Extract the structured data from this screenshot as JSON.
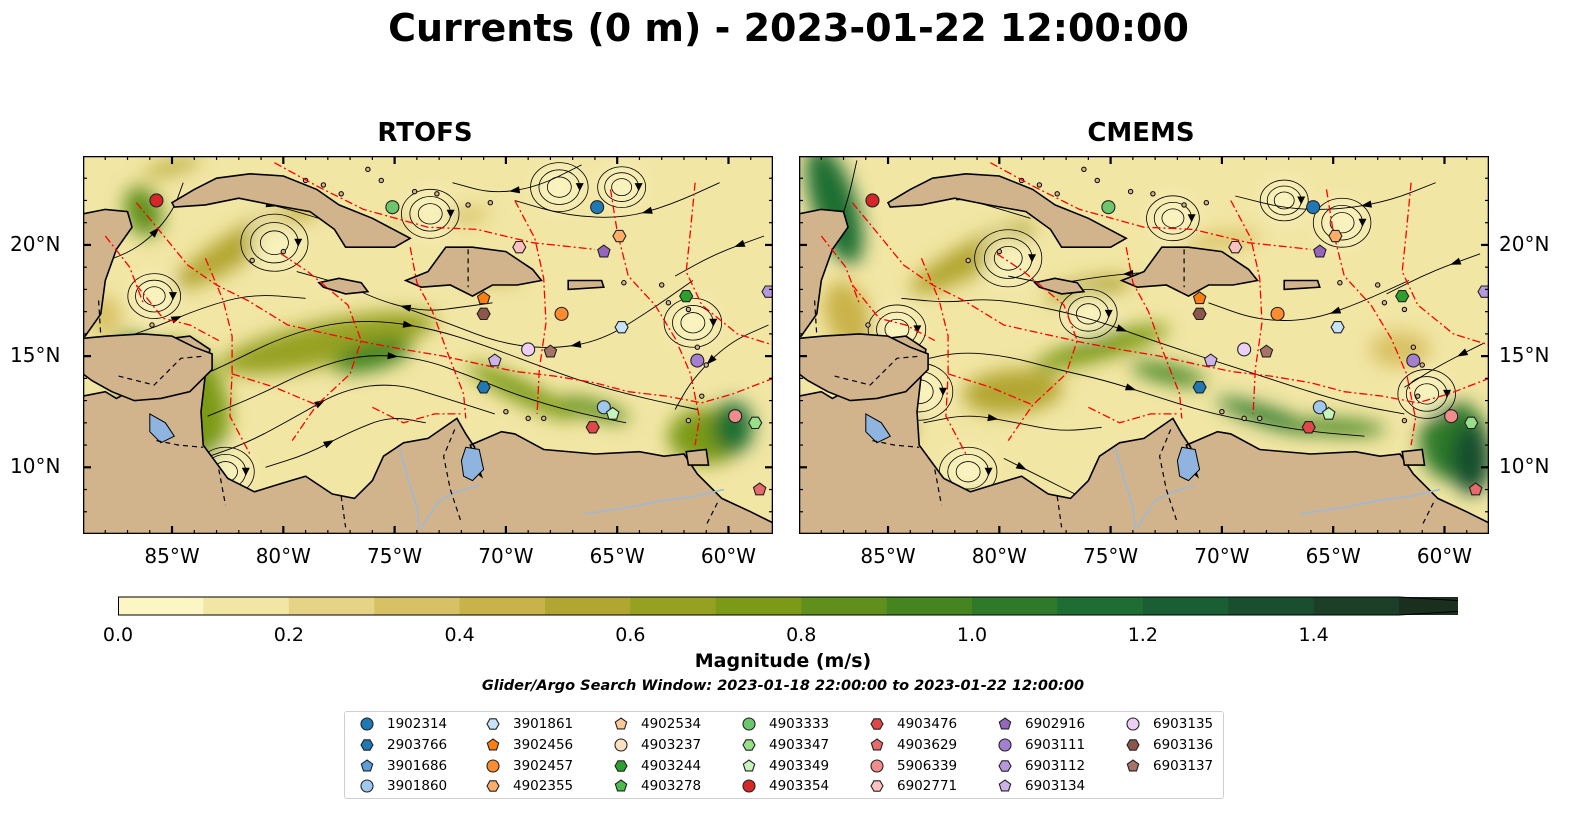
{
  "title": "Currents (0 m) - 2023-01-22 12:00:00",
  "panels": [
    {
      "title": "RTOFS"
    },
    {
      "title": "CMEMS"
    }
  ],
  "map_extent": {
    "lon": [
      -89,
      -58
    ],
    "lat": [
      7,
      24
    ]
  },
  "axes": {
    "x_ticks": [
      "85°W",
      "80°W",
      "75°W",
      "70°W",
      "65°W",
      "60°W"
    ],
    "x_tick_lons": [
      -85,
      -80,
      -75,
      -70,
      -65,
      -60
    ],
    "y_ticks": [
      "20°N",
      "15°N",
      "10°N"
    ],
    "y_tick_lats": [
      20,
      15,
      10
    ]
  },
  "colorbar": {
    "label": "Magnitude (m/s)",
    "ticks": [
      "0.0",
      "0.2",
      "0.4",
      "0.6",
      "0.8",
      "1.0",
      "1.2",
      "1.4"
    ],
    "range": [
      0,
      1.5
    ],
    "extend": "max",
    "colors": [
      "#fbf6c4",
      "#f2e6a5",
      "#e6d386",
      "#d8c165",
      "#c9b24a",
      "#b2a632",
      "#96a121",
      "#7c9a18",
      "#60901b",
      "#458520",
      "#2f7a2a",
      "#1e6e33",
      "#195f33",
      "#194f2e",
      "#1b3f27",
      "#1b2f1f"
    ]
  },
  "search_window": "Glider/Argo Search Window: 2023-01-18 22:00:00 to 2023-01-22 12:00:00",
  "colors": {
    "land": "#d2b48c",
    "lake": "#8fb4e0",
    "eez": "#ff0000",
    "streamline": "#000000"
  },
  "legend": [
    {
      "id": "1902314",
      "marker": "circle",
      "color": "#1f77b4"
    },
    {
      "id": "2903766",
      "marker": "hexagon",
      "color": "#1f77b4"
    },
    {
      "id": "3901686",
      "marker": "pentagon",
      "color": "#5a9fdc"
    },
    {
      "id": "3901860",
      "marker": "circle",
      "color": "#9ec8ee"
    },
    {
      "id": "3901861",
      "marker": "hexagon",
      "color": "#c6e3f7"
    },
    {
      "id": "3902456",
      "marker": "pentagon",
      "color": "#ff7f0e"
    },
    {
      "id": "3902457",
      "marker": "circle",
      "color": "#ff8c2e"
    },
    {
      "id": "4902355",
      "marker": "hexagon",
      "color": "#ffae6a"
    },
    {
      "id": "4902534",
      "marker": "pentagon",
      "color": "#ffc894"
    },
    {
      "id": "4903237",
      "marker": "circle",
      "color": "#ffe0bf"
    },
    {
      "id": "4903244",
      "marker": "hexagon",
      "color": "#2ca02c"
    },
    {
      "id": "4903278",
      "marker": "pentagon",
      "color": "#4cbb4c"
    },
    {
      "id": "4903333",
      "marker": "circle",
      "color": "#6cc76c"
    },
    {
      "id": "4903347",
      "marker": "hexagon",
      "color": "#98df8a"
    },
    {
      "id": "4903349",
      "marker": "pentagon",
      "color": "#c7f3bd"
    },
    {
      "id": "4903354",
      "marker": "circle",
      "color": "#d62728"
    },
    {
      "id": "4903476",
      "marker": "hexagon",
      "color": "#e04748"
    },
    {
      "id": "4903629",
      "marker": "pentagon",
      "color": "#e96a6b"
    },
    {
      "id": "5906339",
      "marker": "circle",
      "color": "#f08c8c"
    },
    {
      "id": "6902771",
      "marker": "hexagon",
      "color": "#ffc0c0"
    },
    {
      "id": "6902916",
      "marker": "pentagon",
      "color": "#9467bd"
    },
    {
      "id": "6903111",
      "marker": "circle",
      "color": "#a57fcf"
    },
    {
      "id": "6903112",
      "marker": "hexagon",
      "color": "#b898dc"
    },
    {
      "id": "6903134",
      "marker": "pentagon",
      "color": "#cdb3ea"
    },
    {
      "id": "6903135",
      "marker": "circle",
      "color": "#ecd0f5"
    },
    {
      "id": "6903136",
      "marker": "hexagon",
      "color": "#8c564b"
    },
    {
      "id": "6903137",
      "marker": "pentagon",
      "color": "#a67466"
    }
  ],
  "floats": [
    {
      "id": "4903354",
      "lon": -85.7,
      "lat": 22.0
    },
    {
      "id": "4903333",
      "lon": -75.1,
      "lat": 21.7
    },
    {
      "id": "1902314",
      "lon": -65.9,
      "lat": 21.7
    },
    {
      "id": "4902355",
      "lon": -64.9,
      "lat": 20.4
    },
    {
      "id": "6902916",
      "lon": -65.6,
      "lat": 19.7
    },
    {
      "id": "6902771",
      "lon": -69.4,
      "lat": 19.9
    },
    {
      "id": "3902456",
      "lon": -71.0,
      "lat": 17.6
    },
    {
      "id": "6903136",
      "lon": -71.0,
      "lat": 16.9
    },
    {
      "id": "3902457",
      "lon": -67.5,
      "lat": 16.9
    },
    {
      "id": "4903244",
      "lon": -61.9,
      "lat": 17.7
    },
    {
      "id": "6903112",
      "lon": -58.2,
      "lat": 17.9
    },
    {
      "id": "3901861",
      "lon": -64.8,
      "lat": 16.3
    },
    {
      "id": "6903135",
      "lon": -69.0,
      "lat": 15.3
    },
    {
      "id": "6903137",
      "lon": -68.0,
      "lat": 15.2
    },
    {
      "id": "6903134",
      "lon": -70.5,
      "lat": 14.8
    },
    {
      "id": "6903111",
      "lon": -61.4,
      "lat": 14.8
    },
    {
      "id": "2903766",
      "lon": -71.0,
      "lat": 13.6
    },
    {
      "id": "3901860",
      "lon": -65.6,
      "lat": 12.7
    },
    {
      "id": "4903349",
      "lon": -65.2,
      "lat": 12.4
    },
    {
      "id": "5906339",
      "lon": -59.7,
      "lat": 12.3
    },
    {
      "id": "4903347",
      "lon": -58.8,
      "lat": 12.0
    },
    {
      "id": "4903476",
      "lon": -66.1,
      "lat": 11.8
    },
    {
      "id": "4903629",
      "lon": -58.6,
      "lat": 9.0
    }
  ]
}
